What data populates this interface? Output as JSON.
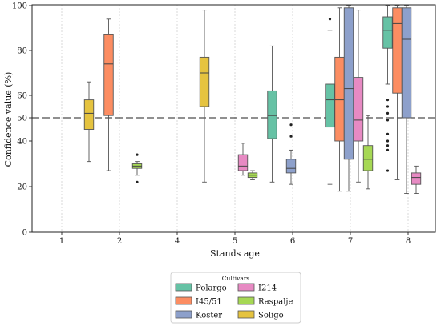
{
  "chart_data": {
    "type": "box",
    "xlabel": "Stands age",
    "ylabel": "Confidence value (%)",
    "ylim": [
      0,
      100
    ],
    "yticks": [
      0,
      20,
      40,
      50,
      60,
      80,
      100
    ],
    "categories": [
      "1",
      "2",
      "4",
      "5",
      "6",
      "7",
      "8"
    ],
    "reference_line": {
      "y": 50,
      "style": "dashed"
    },
    "grid": {
      "x": true,
      "y": false
    },
    "legend": {
      "title": "Cultivars",
      "placement": "bottom-center",
      "columns": 2
    },
    "series": [
      {
        "name": "Polargo",
        "color": "#66c2a5",
        "boxes": [
          {
            "category": "6",
            "whislo": 22,
            "q1": 41,
            "med": 51,
            "q3": 62,
            "whishi": 82,
            "fliers": []
          },
          {
            "category": "7",
            "whislo": 21,
            "q1": 46,
            "med": 58,
            "q3": 65,
            "whishi": 89,
            "fliers": [
              94
            ]
          },
          {
            "category": "8",
            "whislo": 65,
            "q1": 81,
            "med": 89,
            "q3": 95,
            "whishi": 100,
            "fliers": [
              58,
              55,
              52,
              49,
              43,
              40,
              38,
              36,
              27
            ]
          }
        ]
      },
      {
        "name": "I45/51",
        "color": "#fc8d62",
        "boxes": [
          {
            "category": "2",
            "whislo": 27,
            "q1": 51,
            "med": 74,
            "q3": 87,
            "whishi": 94,
            "fliers": []
          },
          {
            "category": "7",
            "whislo": 18,
            "q1": 40,
            "med": 58,
            "q3": 77,
            "whishi": 99,
            "fliers": []
          },
          {
            "category": "8",
            "whislo": 23,
            "q1": 61,
            "med": 92,
            "q3": 99,
            "whishi": 100,
            "fliers": []
          }
        ]
      },
      {
        "name": "Koster",
        "color": "#8da0cb",
        "boxes": [
          {
            "category": "6",
            "whislo": 21,
            "q1": 26,
            "med": 28,
            "q3": 32,
            "whishi": 36,
            "fliers": [
              47,
              42
            ]
          },
          {
            "category": "7",
            "whislo": 18,
            "q1": 32,
            "med": 63,
            "q3": 99,
            "whishi": 100,
            "fliers": []
          },
          {
            "category": "8",
            "whislo": 17,
            "q1": 50,
            "med": 85,
            "q3": 99,
            "whishi": 100,
            "fliers": []
          }
        ]
      },
      {
        "name": "I214",
        "color": "#e78ac3",
        "boxes": [
          {
            "category": "5",
            "whislo": 25,
            "q1": 27,
            "med": 29,
            "q3": 34,
            "whishi": 39,
            "fliers": []
          },
          {
            "category": "7",
            "whislo": 22,
            "q1": 40,
            "med": 49,
            "q3": 68,
            "whishi": 98,
            "fliers": []
          },
          {
            "category": "8",
            "whislo": 17,
            "q1": 21,
            "med": 24,
            "q3": 26,
            "whishi": 29,
            "fliers": []
          }
        ]
      },
      {
        "name": "Raspalje",
        "color": "#a6d854",
        "boxes": [
          {
            "category": "2",
            "whislo": 25,
            "q1": 28,
            "med": 29,
            "q3": 30,
            "whishi": 31,
            "fliers": [
              34,
              22
            ]
          },
          {
            "category": "5",
            "whislo": 23,
            "q1": 24,
            "med": 25,
            "q3": 26,
            "whishi": 27,
            "fliers": []
          },
          {
            "category": "7",
            "whislo": 19,
            "q1": 27,
            "med": 32,
            "q3": 38,
            "whishi": 51,
            "fliers": []
          }
        ]
      },
      {
        "name": "Soligo",
        "color": "#e5c33f",
        "boxes": [
          {
            "category": "1",
            "whislo": 31,
            "q1": 45,
            "med": 52,
            "q3": 58,
            "whishi": 66,
            "fliers": []
          },
          {
            "category": "4",
            "whislo": 22,
            "q1": 55,
            "med": 70,
            "q3": 77,
            "whishi": 98,
            "fliers": []
          }
        ]
      }
    ]
  }
}
